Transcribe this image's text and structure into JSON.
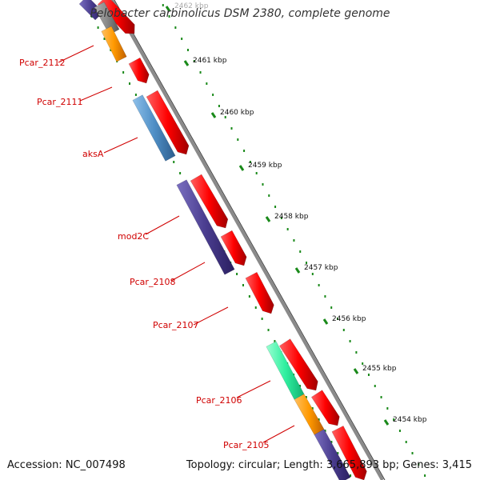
{
  "title": "Pelobacter carbinolicus DSM 2380, complete genome",
  "accession": "Accession: NC_007498",
  "topology": "Topology: circular; Length: 3,665,893 bp; Genes: 3,415",
  "ticks": [
    "2462 kbp",
    "2461 kbp",
    "2460 kbp",
    "2459 kbp",
    "2458 kbp",
    "2457 kbp",
    "2456 kbp",
    "2455 kbp",
    "2454 kbp"
  ],
  "gene_labels": [
    "Pcar_2112",
    "Pcar_2111",
    "aksA",
    "mod2C",
    "Pcar_2108",
    "Pcar_2107",
    "Pcar_2106",
    "Pcar_2105"
  ],
  "colors": {
    "forward_gene": "#ff0000",
    "label": "#d00000",
    "tick": "#1a8a1a",
    "blue_gene": "#4f8fc6",
    "purple_gene": "#4a3d8f",
    "green_gene": "#30f0a0",
    "orange_gene": "#ff9900"
  }
}
